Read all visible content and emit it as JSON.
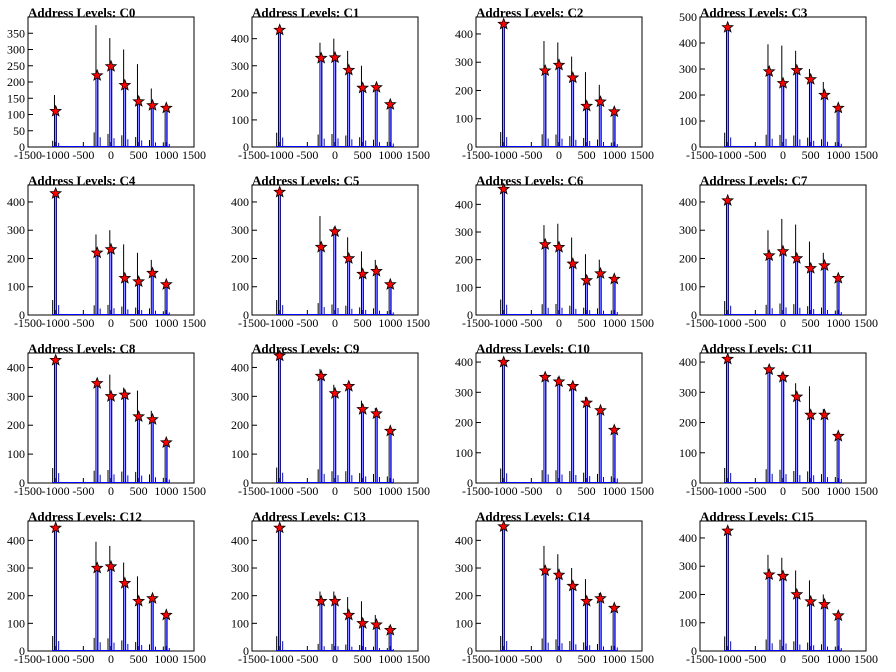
{
  "chart_data": [
    {
      "type": "bar",
      "title": "Address Levels: C0",
      "ylim": [
        0,
        400
      ],
      "yticks": [
        0,
        50,
        100,
        150,
        200,
        250,
        300,
        350
      ],
      "xlim": [
        -1500,
        1500
      ],
      "xticks": [
        -1500,
        -1000,
        -500,
        0,
        500,
        1000,
        1500
      ],
      "x": [
        -1000,
        -250,
        0,
        250,
        500,
        750,
        1000
      ],
      "peaks": [
        160,
        375,
        335,
        300,
        255,
        180,
        120
      ],
      "markers": [
        110,
        220,
        248,
        190,
        140,
        128,
        120
      ],
      "marker_color": "#ff0000",
      "spike_colors": [
        "#000000",
        "#0000ff"
      ]
    },
    {
      "type": "bar",
      "title": "Address Levels: C1",
      "ylim": [
        0,
        480
      ],
      "yticks": [
        0,
        100,
        200,
        300,
        400
      ],
      "xlim": [
        -1500,
        1500
      ],
      "xticks": [
        -1500,
        -1000,
        -500,
        0,
        500,
        1000,
        1500
      ],
      "x": [
        -1000,
        -250,
        0,
        250,
        500,
        750,
        1000
      ],
      "peaks": [
        440,
        385,
        400,
        355,
        300,
        225,
        160
      ],
      "markers": [
        432,
        328,
        330,
        284,
        218,
        220,
        157
      ],
      "marker_color": "#ff0000",
      "spike_colors": [
        "#000000",
        "#0000ff"
      ]
    },
    {
      "type": "bar",
      "title": "Address Levels: C2",
      "ylim": [
        0,
        460
      ],
      "yticks": [
        0,
        100,
        200,
        300,
        400
      ],
      "xlim": [
        -1500,
        1500
      ],
      "xticks": [
        -1500,
        -1000,
        -500,
        0,
        500,
        1000,
        1500
      ],
      "x": [
        -1000,
        -250,
        0,
        250,
        500,
        750,
        1000
      ],
      "peaks": [
        440,
        375,
        370,
        320,
        265,
        220,
        130
      ],
      "markers": [
        435,
        270,
        290,
        245,
        145,
        160,
        125
      ],
      "marker_color": "#ff0000",
      "spike_colors": [
        "#000000",
        "#0000ff"
      ]
    },
    {
      "type": "bar",
      "title": "Address Levels: C3",
      "ylim": [
        0,
        500
      ],
      "yticks": [
        0,
        100,
        200,
        300,
        400,
        500
      ],
      "xlim": [
        -1500,
        1500
      ],
      "xticks": [
        -1500,
        -1000,
        -500,
        0,
        500,
        1000,
        1500
      ],
      "x": [
        -1000,
        -250,
        0,
        250,
        500,
        750,
        1000
      ],
      "peaks": [
        460,
        395,
        390,
        370,
        300,
        250,
        155
      ],
      "markers": [
        460,
        290,
        245,
        295,
        260,
        200,
        150
      ],
      "marker_color": "#ff0000",
      "spike_colors": [
        "#000000",
        "#0000ff"
      ]
    },
    {
      "type": "bar",
      "title": "Address Levels: C4",
      "ylim": [
        0,
        460
      ],
      "yticks": [
        0,
        100,
        200,
        300,
        400
      ],
      "xlim": [
        -1500,
        1500
      ],
      "xticks": [
        -1500,
        -1000,
        -500,
        0,
        500,
        1000,
        1500
      ],
      "x": [
        -1000,
        -250,
        0,
        250,
        500,
        750,
        1000
      ],
      "peaks": [
        440,
        285,
        300,
        250,
        220,
        195,
        110
      ],
      "markers": [
        430,
        220,
        232,
        130,
        118,
        148,
        108
      ],
      "marker_color": "#ff0000",
      "spike_colors": [
        "#000000",
        "#0000ff"
      ]
    },
    {
      "type": "bar",
      "title": "Address Levels: C5",
      "ylim": [
        0,
        460
      ],
      "yticks": [
        0,
        100,
        200,
        300,
        400
      ],
      "xlim": [
        -1500,
        1500
      ],
      "xticks": [
        -1500,
        -1000,
        -500,
        0,
        500,
        1000,
        1500
      ],
      "x": [
        -1000,
        -250,
        0,
        250,
        500,
        750,
        1000
      ],
      "peaks": [
        440,
        350,
        310,
        275,
        225,
        195,
        115
      ],
      "markers": [
        435,
        240,
        295,
        200,
        145,
        155,
        108
      ],
      "marker_color": "#ff0000",
      "spike_colors": [
        "#000000",
        "#0000ff"
      ]
    },
    {
      "type": "bar",
      "title": "Address Levels: C6",
      "ylim": [
        0,
        470
      ],
      "yticks": [
        0,
        100,
        200,
        300,
        400
      ],
      "xlim": [
        -1500,
        1500
      ],
      "xticks": [
        -1500,
        -1000,
        -500,
        0,
        500,
        1000,
        1500
      ],
      "x": [
        -1000,
        -250,
        0,
        250,
        500,
        750,
        1000
      ],
      "peaks": [
        465,
        325,
        330,
        280,
        220,
        200,
        140
      ],
      "markers": [
        455,
        255,
        245,
        185,
        125,
        150,
        130
      ],
      "marker_color": "#ff0000",
      "spike_colors": [
        "#000000",
        "#0000ff"
      ]
    },
    {
      "type": "bar",
      "title": "Address Levels: C7",
      "ylim": [
        0,
        460
      ],
      "yticks": [
        0,
        100,
        200,
        300,
        400
      ],
      "xlim": [
        -1500,
        1500
      ],
      "xticks": [
        -1500,
        -1000,
        -500,
        0,
        500,
        1000,
        1500
      ],
      "x": [
        -1000,
        -250,
        0,
        250,
        500,
        750,
        1000
      ],
      "peaks": [
        410,
        300,
        340,
        320,
        260,
        220,
        130
      ],
      "markers": [
        405,
        210,
        225,
        200,
        165,
        175,
        130
      ],
      "marker_color": "#ff0000",
      "spike_colors": [
        "#000000",
        "#0000ff"
      ]
    },
    {
      "type": "bar",
      "title": "Address Levels: C8",
      "ylim": [
        0,
        450
      ],
      "yticks": [
        0,
        100,
        200,
        300,
        400
      ],
      "xlim": [
        -1500,
        1500
      ],
      "xticks": [
        -1500,
        -1000,
        -500,
        0,
        500,
        1000,
        1500
      ],
      "x": [
        -1000,
        -250,
        0,
        250,
        500,
        750,
        1000
      ],
      "peaks": [
        430,
        355,
        375,
        330,
        320,
        250,
        150
      ],
      "markers": [
        425,
        345,
        300,
        305,
        230,
        220,
        140
      ],
      "marker_color": "#ff0000",
      "spike_colors": [
        "#000000",
        "#0000ff"
      ]
    },
    {
      "type": "bar",
      "title": "Address Levels: C9",
      "ylim": [
        0,
        450
      ],
      "yticks": [
        0,
        100,
        200,
        300,
        400
      ],
      "xlim": [
        -1500,
        1500
      ],
      "xticks": [
        -1500,
        -1000,
        -500,
        0,
        500,
        1000,
        1500
      ],
      "x": [
        -1000,
        -250,
        0,
        250,
        500,
        750,
        1000
      ],
      "peaks": [
        445,
        395,
        340,
        340,
        285,
        260,
        190
      ],
      "markers": [
        440,
        370,
        310,
        335,
        255,
        240,
        180
      ],
      "marker_color": "#ff0000",
      "spike_colors": [
        "#000000",
        "#0000ff"
      ]
    },
    {
      "type": "bar",
      "title": "Address Levels: C10",
      "ylim": [
        0,
        430
      ],
      "yticks": [
        0,
        100,
        200,
        300,
        400
      ],
      "xlim": [
        -1500,
        1500
      ],
      "xticks": [
        -1500,
        -1000,
        -500,
        0,
        500,
        1000,
        1500
      ],
      "x": [
        -1000,
        -250,
        0,
        250,
        500,
        750,
        1000
      ],
      "peaks": [
        400,
        355,
        350,
        330,
        285,
        250,
        185
      ],
      "markers": [
        400,
        350,
        335,
        320,
        265,
        240,
        175
      ],
      "marker_color": "#ff0000",
      "spike_colors": [
        "#000000",
        "#0000ff"
      ]
    },
    {
      "type": "bar",
      "title": "Address Levels: C11",
      "ylim": [
        0,
        430
      ],
      "yticks": [
        0,
        100,
        200,
        300,
        400
      ],
      "xlim": [
        -1500,
        1500
      ],
      "xticks": [
        -1500,
        -1000,
        -500,
        0,
        500,
        1000,
        1500
      ],
      "x": [
        -1000,
        -250,
        0,
        250,
        500,
        750,
        1000
      ],
      "peaks": [
        415,
        380,
        365,
        330,
        320,
        245,
        165
      ],
      "markers": [
        410,
        375,
        350,
        285,
        225,
        225,
        155
      ],
      "marker_color": "#ff0000",
      "spike_colors": [
        "#000000",
        "#0000ff"
      ]
    },
    {
      "type": "bar",
      "title": "Address Levels: C12",
      "ylim": [
        0,
        470
      ],
      "yticks": [
        0,
        100,
        200,
        300,
        400
      ],
      "xlim": [
        -1500,
        1500
      ],
      "xticks": [
        -1500,
        -1000,
        -500,
        0,
        500,
        1000,
        1500
      ],
      "x": [
        -1000,
        -250,
        0,
        250,
        500,
        750,
        1000
      ],
      "peaks": [
        450,
        395,
        380,
        320,
        270,
        200,
        135
      ],
      "markers": [
        445,
        300,
        305,
        245,
        180,
        190,
        130
      ],
      "marker_color": "#ff0000",
      "spike_colors": [
        "#000000",
        "#0000ff"
      ]
    },
    {
      "type": "bar",
      "title": "Address Levels: C13",
      "ylim": [
        0,
        470
      ],
      "yticks": [
        0,
        100,
        200,
        300,
        400
      ],
      "xlim": [
        -1500,
        1500
      ],
      "xticks": [
        -1500,
        -1000,
        -500,
        0,
        500,
        1000,
        1500
      ],
      "x": [
        -1000,
        -250,
        0,
        250,
        500,
        750,
        1000
      ],
      "peaks": [
        445,
        215,
        215,
        195,
        180,
        130,
        90
      ],
      "markers": [
        445,
        180,
        180,
        130,
        100,
        95,
        75
      ],
      "marker_color": "#ff0000",
      "spike_colors": [
        "#000000",
        "#0000ff"
      ]
    },
    {
      "type": "bar",
      "title": "Address Levels: C14",
      "ylim": [
        0,
        470
      ],
      "yticks": [
        0,
        100,
        200,
        300,
        400
      ],
      "xlim": [
        -1500,
        1500
      ],
      "xticks": [
        -1500,
        -1000,
        -500,
        0,
        500,
        1000,
        1500
      ],
      "x": [
        -1000,
        -250,
        0,
        250,
        500,
        750,
        1000
      ],
      "peaks": [
        450,
        380,
        350,
        300,
        260,
        210,
        160
      ],
      "markers": [
        450,
        290,
        275,
        235,
        180,
        190,
        155
      ],
      "marker_color": "#ff0000",
      "spike_colors": [
        "#000000",
        "#0000ff"
      ]
    },
    {
      "type": "bar",
      "title": "Address Levels: C15",
      "ylim": [
        0,
        460
      ],
      "yticks": [
        0,
        100,
        200,
        300,
        400
      ],
      "xlim": [
        -1500,
        1500
      ],
      "xticks": [
        -1500,
        -1000,
        -500,
        0,
        500,
        1000,
        1500
      ],
      "x": [
        -1000,
        -250,
        0,
        250,
        500,
        750,
        1000
      ],
      "peaks": [
        430,
        340,
        330,
        285,
        250,
        200,
        130
      ],
      "markers": [
        425,
        270,
        265,
        200,
        175,
        165,
        125
      ],
      "marker_color": "#ff0000",
      "spike_colors": [
        "#000000",
        "#0000ff"
      ]
    }
  ]
}
